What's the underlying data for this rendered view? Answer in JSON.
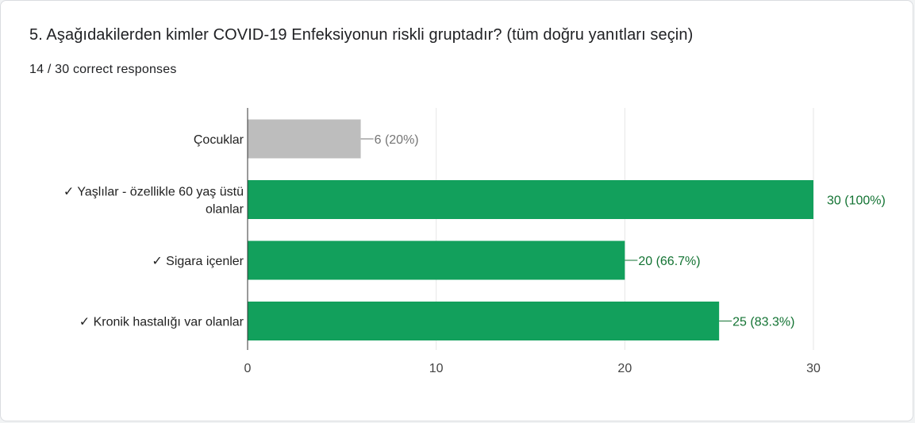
{
  "question": {
    "title": "5. Aşağıdakilerden kimler COVID-19 Enfeksiyonun riskli gruptadır? (tüm doğru yanıtları seçin)",
    "response_count": "14 / 30 correct responses"
  },
  "colors": {
    "correct": "#12a05c",
    "incorrect": "#bdbdbd",
    "correct_label": "#137333",
    "incorrect_label": "#757575",
    "grid": "#e6e6e6",
    "axis": "#333333"
  },
  "chart_data": {
    "type": "bar",
    "orientation": "horizontal",
    "categories": [
      "Çocuklar",
      "✓ Yaşlılar - özellikle 60 yaş üstü olanlar",
      "✓ Sigara içenler",
      "✓ Kronik hastalığı var olanlar"
    ],
    "category_lines": [
      [
        "Çocuklar"
      ],
      [
        "✓ Yaşlılar - özellikle 60 yaş üstü",
        "olanlar"
      ],
      [
        "✓ Sigara içenler"
      ],
      [
        "✓ Kronik hastalığı var olanlar"
      ]
    ],
    "values": [
      6,
      30,
      20,
      25
    ],
    "correct": [
      false,
      true,
      true,
      true
    ],
    "value_labels": [
      "6 (20%)",
      "30 (100%)",
      "20 (66.7%)",
      "25 (83.3%)"
    ],
    "xlim": [
      0,
      30
    ],
    "xticks": [
      0,
      10,
      20,
      30
    ],
    "grid": true,
    "title": "",
    "xlabel": "",
    "ylabel": ""
  }
}
